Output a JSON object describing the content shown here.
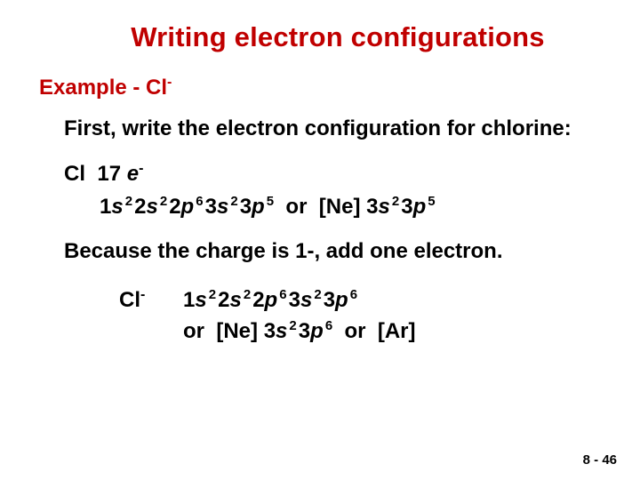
{
  "title": "Writing electron configurations",
  "example": {
    "label": "Example - Cl",
    "charge": "-"
  },
  "first_line": "First, write the electron configuration for chlorine:",
  "neutral": {
    "symbol": "Cl",
    "count": "17",
    "e_label": "e",
    "e_sup": "-",
    "terms": [
      {
        "n": "1",
        "l": "s",
        "sup": "2"
      },
      {
        "n": "2",
        "l": "s",
        "sup": "2"
      },
      {
        "n": "2",
        "l": "p",
        "sup": "6"
      },
      {
        "n": "3",
        "l": "s",
        "sup": "2"
      },
      {
        "n": "3",
        "l": "p",
        "sup": "5"
      }
    ],
    "or": "or",
    "noble": "[Ne]",
    "short_terms": [
      {
        "n": "3",
        "l": "s",
        "sup": "2"
      },
      {
        "n": "3",
        "l": "p",
        "sup": "5"
      }
    ]
  },
  "because": "Because the charge is 1-,  add one electron.",
  "ion": {
    "symbol": "Cl",
    "charge": "-",
    "terms": [
      {
        "n": "1",
        "l": "s",
        "sup": "2"
      },
      {
        "n": "2",
        "l": "s",
        "sup": "2"
      },
      {
        "n": "2",
        "l": "p",
        "sup": "6"
      },
      {
        "n": "3",
        "l": "s",
        "sup": "2"
      },
      {
        "n": "3",
        "l": "p",
        "sup": "6"
      }
    ],
    "or": "or",
    "noble": "[Ne]",
    "short_terms": [
      {
        "n": "3",
        "l": "s",
        "sup": "2"
      },
      {
        "n": "3",
        "l": "p",
        "sup": "6"
      }
    ],
    "or2": "or",
    "noble2": "[Ar]"
  },
  "footer": "8 - 46",
  "colors": {
    "title": "#c00000",
    "example": "#c00000",
    "body": "#000000",
    "background": "#ffffff"
  },
  "fonts": {
    "title_size_pt": 23,
    "body_size_pt": 18,
    "footer_size_pt": 11,
    "weight": 900,
    "family": "Arial"
  }
}
